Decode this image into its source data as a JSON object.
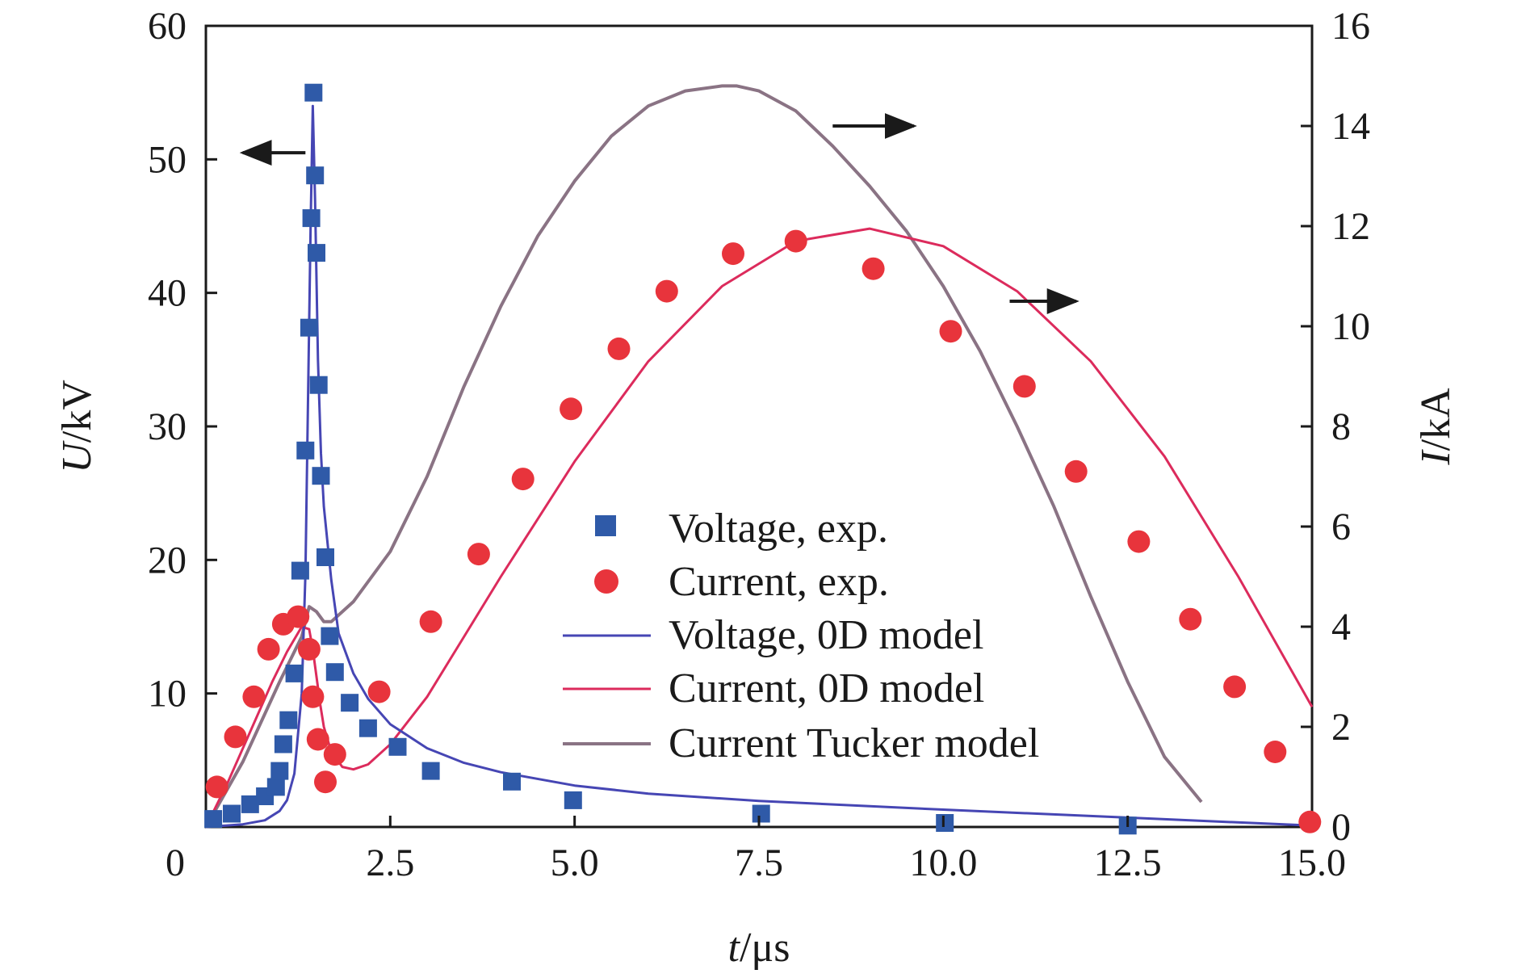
{
  "chart_data": {
    "type": "scatter",
    "xlabel_italic": "t",
    "xlabel_unit": "/μs",
    "ylabel_left_italic": "U",
    "ylabel_left_unit": "/kV",
    "ylabel_right_italic": "I",
    "ylabel_right_unit": "/kA",
    "xlim": [
      0,
      15
    ],
    "ylim_left": [
      0,
      60
    ],
    "ylim_right": [
      0,
      16
    ],
    "x_tick_labels": [
      "0",
      "2.5",
      "5.0",
      "7.5",
      "10.0",
      "12.5",
      "15.0"
    ],
    "y_left_tick_labels": [
      "10",
      "20",
      "30",
      "40",
      "50",
      "60"
    ],
    "y_right_tick_labels": [
      "0",
      "2",
      "4",
      "6",
      "8",
      "10",
      "12",
      "14",
      "16"
    ],
    "grid": false,
    "legend_position": "center-right",
    "series": [
      {
        "name": "Voltage, exp.",
        "kind": "scatter",
        "marker": "square",
        "axis": "left",
        "color": "#2f5aa8",
        "x": [
          0.1,
          0.35,
          0.6,
          0.8,
          0.95,
          1.0,
          1.05,
          1.12,
          1.2,
          1.28,
          1.35,
          1.4,
          1.43,
          1.46,
          1.48,
          1.5,
          1.53,
          1.56,
          1.62,
          1.68,
          1.75,
          1.95,
          2.2,
          2.6,
          3.05,
          4.15,
          4.98,
          7.53,
          10.02,
          12.5
        ],
        "y": [
          0.6,
          1.0,
          1.7,
          2.3,
          3.0,
          4.2,
          6.2,
          8.0,
          11.5,
          19.2,
          28.2,
          37.4,
          45.6,
          55.0,
          48.8,
          43.0,
          33.1,
          26.3,
          20.2,
          14.3,
          11.6,
          9.3,
          7.4,
          6.0,
          4.2,
          3.4,
          2.0,
          1.0,
          0.3,
          0.1
        ]
      },
      {
        "name": "Current, exp.",
        "kind": "scatter",
        "marker": "circle",
        "axis": "right",
        "color": "#e8343c",
        "x": [
          0.15,
          0.4,
          0.65,
          0.85,
          1.05,
          1.25,
          1.4,
          1.45,
          1.52,
          1.62,
          1.75,
          2.35,
          3.05,
          3.7,
          4.3,
          4.95,
          5.6,
          6.25,
          7.15,
          8.0,
          9.05,
          10.1,
          11.1,
          11.8,
          12.65,
          13.35,
          13.95,
          14.5,
          14.97
        ],
        "y": [
          0.8,
          1.8,
          2.6,
          3.55,
          4.05,
          4.2,
          3.55,
          2.6,
          1.75,
          0.9,
          1.45,
          2.7,
          4.1,
          5.45,
          6.95,
          8.35,
          9.55,
          10.7,
          11.45,
          11.7,
          11.15,
          9.9,
          8.8,
          7.1,
          5.7,
          4.15,
          2.8,
          1.5,
          0.1
        ]
      },
      {
        "name": "Voltage, 0D model",
        "kind": "line",
        "axis": "left",
        "color": "#4646b4",
        "x": [
          0.0,
          0.5,
          0.8,
          1.0,
          1.1,
          1.2,
          1.3,
          1.35,
          1.38,
          1.42,
          1.45,
          1.48,
          1.52,
          1.56,
          1.6,
          1.7,
          1.8,
          2.0,
          2.2,
          2.5,
          3.0,
          3.5,
          4.0,
          5.0,
          6.0,
          7.5,
          10.0,
          12.5,
          15.0
        ],
        "y": [
          0.0,
          0.2,
          0.5,
          1.2,
          2.0,
          4.0,
          10.0,
          19.0,
          30.0,
          45.0,
          54.0,
          47.0,
          35.0,
          28.0,
          24.0,
          18.5,
          14.5,
          11.5,
          9.6,
          7.7,
          5.9,
          4.8,
          4.1,
          3.1,
          2.5,
          1.95,
          1.3,
          0.7,
          0.1
        ]
      },
      {
        "name": "Current, 0D model",
        "kind": "line",
        "axis": "right",
        "color": "#dc2b5c",
        "x": [
          0.0,
          0.3,
          0.6,
          0.9,
          1.1,
          1.3,
          1.4,
          1.45,
          1.5,
          1.55,
          1.6,
          1.7,
          1.85,
          2.0,
          2.2,
          2.5,
          3.0,
          3.5,
          4.0,
          5.0,
          6.0,
          7.0,
          8.0,
          9.0,
          10.0,
          11.0,
          12.0,
          13.0,
          14.0,
          15.0
        ],
        "y": [
          0.0,
          0.9,
          1.9,
          2.9,
          3.5,
          4.0,
          3.95,
          3.55,
          3.0,
          2.45,
          2.0,
          1.5,
          1.2,
          1.15,
          1.25,
          1.65,
          2.6,
          3.8,
          5.0,
          7.3,
          9.3,
          10.8,
          11.7,
          11.95,
          11.6,
          10.7,
          9.3,
          7.4,
          5.0,
          2.4
        ]
      },
      {
        "name": "Current Tucker model",
        "kind": "line",
        "axis": "right",
        "color": "#8a7384",
        "x": [
          0.0,
          0.5,
          1.0,
          1.3,
          1.4,
          1.5,
          1.6,
          1.7,
          2.0,
          2.5,
          3.0,
          3.5,
          4.0,
          4.5,
          5.0,
          5.5,
          6.0,
          6.5,
          7.0,
          7.2,
          7.5,
          8.0,
          8.5,
          9.0,
          9.5,
          10.0,
          10.5,
          11.0,
          11.5,
          12.0,
          12.5,
          13.0,
          13.5
        ],
        "y": [
          0.0,
          1.3,
          2.9,
          3.8,
          4.4,
          4.3,
          4.1,
          4.1,
          4.5,
          5.5,
          7.0,
          8.8,
          10.4,
          11.8,
          12.9,
          13.8,
          14.4,
          14.7,
          14.8,
          14.8,
          14.7,
          14.3,
          13.6,
          12.8,
          11.9,
          10.8,
          9.5,
          8.0,
          6.4,
          4.6,
          2.9,
          1.4,
          0.5
        ]
      }
    ],
    "annotations": [
      {
        "kind": "arrow",
        "direction": "left",
        "axis": "left",
        "x_from": 1.35,
        "x_to": 0.5,
        "y": 50.5
      },
      {
        "kind": "arrow",
        "direction": "right",
        "axis": "right",
        "x_from": 8.5,
        "x_to": 9.6,
        "y": 14.0
      },
      {
        "kind": "arrow",
        "direction": "right",
        "axis": "right",
        "x_from": 10.9,
        "x_to": 11.8,
        "y": 10.5
      }
    ]
  }
}
